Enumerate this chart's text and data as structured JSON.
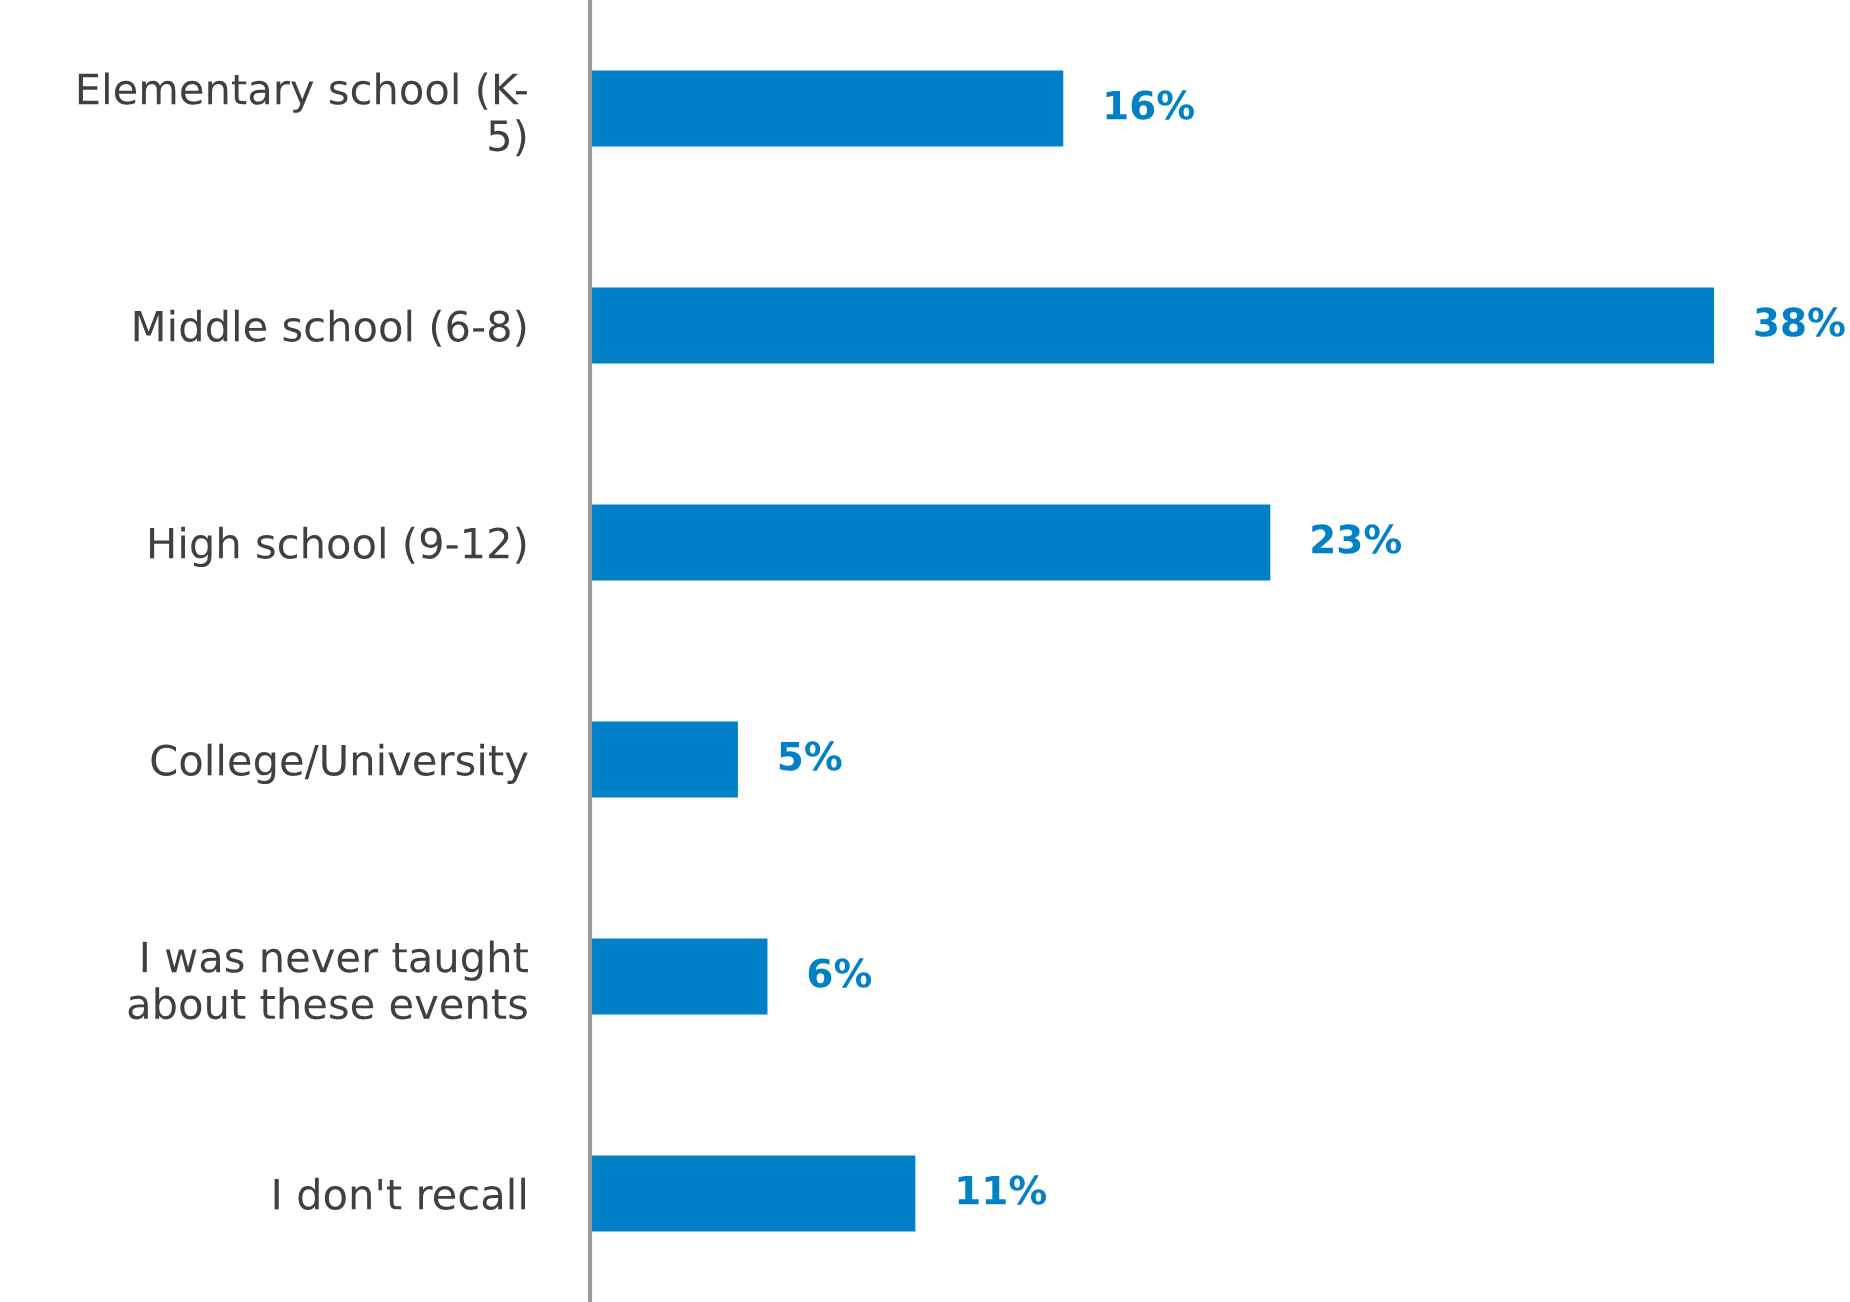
{
  "chart_data": {
    "type": "bar",
    "orientation": "horizontal",
    "categories": [
      "Elementary school (K-\n5)",
      "Middle school (6-8)",
      "High school (9-12)",
      "College/University",
      "I was never taught\nabout these events",
      "I don't recall"
    ],
    "values": [
      16,
      38,
      23,
      5,
      6,
      11
    ],
    "value_labels": [
      "16%",
      "38%",
      "23%",
      "5%",
      "6%",
      "11%"
    ],
    "color": "#0080c6",
    "grid": false,
    "legend": false,
    "tick_labels": "y"
  }
}
